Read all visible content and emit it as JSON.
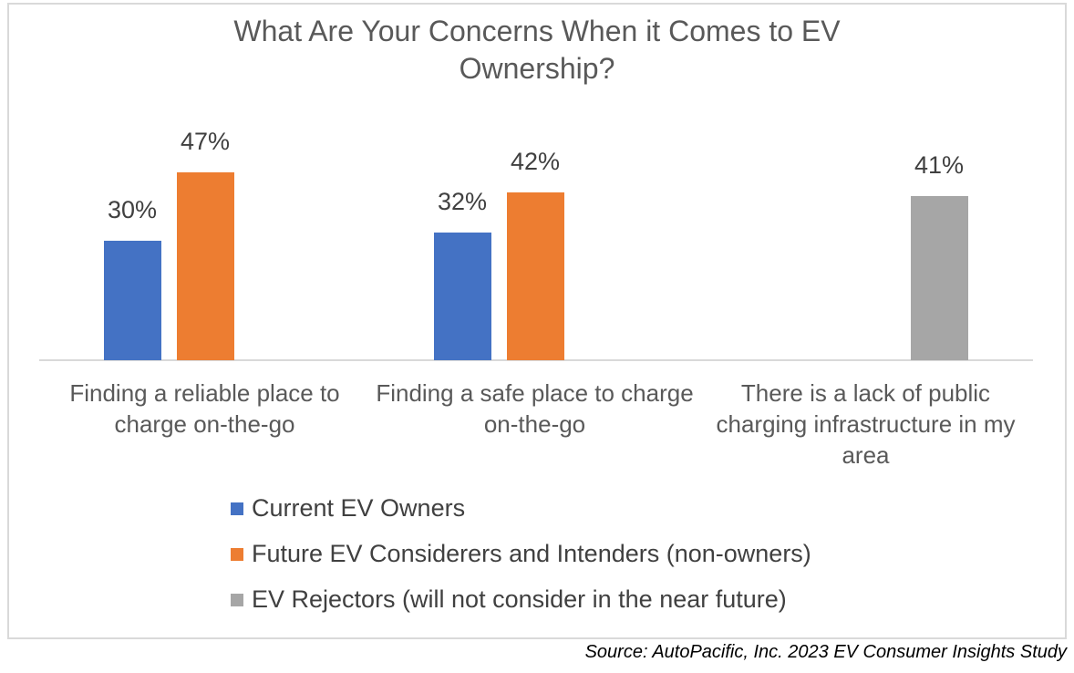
{
  "chart_data": {
    "type": "bar",
    "title": "What Are Your Concerns When it Comes to EV Ownership?",
    "categories": [
      "Finding a reliable place to charge on-the-go",
      "Finding a safe place to charge on-the-go",
      "There is a lack of public charging infrastructure in my area"
    ],
    "series": [
      {
        "name": "Current EV Owners",
        "color": "#4472C4",
        "values": [
          30,
          32,
          null
        ]
      },
      {
        "name": "Future EV Considerers and Intenders (non-owners)",
        "color": "#ED7D31",
        "values": [
          47,
          42,
          null
        ]
      },
      {
        "name": "EV Rejectors (will not consider in the near future)",
        "color": "#A6A6A6",
        "values": [
          null,
          null,
          41
        ]
      }
    ],
    "value_suffix": "%",
    "data_labels_shown": true,
    "ylim": [
      0,
      50
    ],
    "gridlines": false,
    "y_axis_visible": false,
    "x_baseline_visible": true,
    "legend_position": "bottom-left"
  },
  "source_note": "Source: AutoPacific, Inc. 2023 EV Consumer Insights Study",
  "colors": {
    "title_text": "#595959",
    "category_text": "#595959",
    "data_label_text": "#404040",
    "legend_text": "#404040",
    "baseline": "#D9D9D9",
    "frame_border": "#D9D9D9",
    "background": "#FFFFFF",
    "source_text": "#000000"
  }
}
